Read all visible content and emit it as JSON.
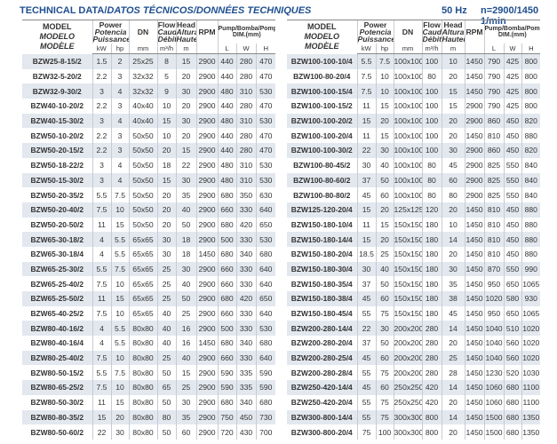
{
  "title_main": "TECHNICAL DATA/",
  "title_italic": "DATOS TÉCNICOS/DONNÉES TECHNIQUES",
  "frequency": "50 Hz",
  "speed": "n=2900/1450 1/min",
  "header": {
    "model": [
      "MODEL",
      "MODELO",
      "MODÈLE"
    ],
    "power": [
      "Power",
      "Potencia",
      "Puissance"
    ],
    "dn": "DN",
    "flow": [
      "Flow",
      "Caudal",
      "Débit"
    ],
    "head": [
      "Head",
      "Altura",
      "Hauteur"
    ],
    "rpm": "RPM",
    "dim": [
      "Pump/Bomba/Pompe",
      "DIM.(mm)"
    ],
    "units": [
      "kW",
      "hp",
      "mm",
      "m³/h",
      "m",
      "",
      "L",
      "W",
      "H"
    ]
  },
  "colors": {
    "title": "#1f4f8f",
    "row_shade": "#e3e8ef"
  },
  "left_table": [
    [
      "BZW25-8-15/2",
      "1.5",
      "2",
      "25x25",
      "8",
      "15",
      "2900",
      "440",
      "280",
      "470"
    ],
    [
      "BZW32-5-20/2",
      "2.2",
      "3",
      "32x32",
      "5",
      "20",
      "2900",
      "440",
      "280",
      "470"
    ],
    [
      "BZW32-9-30/2",
      "3",
      "4",
      "32x32",
      "9",
      "30",
      "2900",
      "480",
      "310",
      "530"
    ],
    [
      "BZW40-10-20/2",
      "2.2",
      "3",
      "40x40",
      "10",
      "20",
      "2900",
      "440",
      "280",
      "470"
    ],
    [
      "BZW40-15-30/2",
      "3",
      "4",
      "40x40",
      "15",
      "30",
      "2900",
      "480",
      "310",
      "530"
    ],
    [
      "BZW50-10-20/2",
      "2.2",
      "3",
      "50x50",
      "10",
      "20",
      "2900",
      "440",
      "280",
      "470"
    ],
    [
      "BZW50-20-15/2",
      "2.2",
      "3",
      "50x50",
      "20",
      "15",
      "2900",
      "440",
      "280",
      "470"
    ],
    [
      "BZW50-18-22/2",
      "3",
      "4",
      "50x50",
      "18",
      "22",
      "2900",
      "480",
      "310",
      "530"
    ],
    [
      "BZW50-15-30/2",
      "3",
      "4",
      "50x50",
      "15",
      "30",
      "2900",
      "480",
      "310",
      "530"
    ],
    [
      "BZW50-20-35/2",
      "5.5",
      "7.5",
      "50x50",
      "20",
      "35",
      "2900",
      "680",
      "350",
      "630"
    ],
    [
      "BZW50-20-40/2",
      "7.5",
      "10",
      "50x50",
      "20",
      "40",
      "2900",
      "660",
      "330",
      "640"
    ],
    [
      "BZW50-20-50/2",
      "11",
      "15",
      "50x50",
      "20",
      "50",
      "2900",
      "680",
      "420",
      "650"
    ],
    [
      "BZW65-30-18/2",
      "4",
      "5.5",
      "65x65",
      "30",
      "18",
      "2900",
      "500",
      "330",
      "530"
    ],
    [
      "BZW65-30-18/4",
      "4",
      "5.5",
      "65x65",
      "30",
      "18",
      "1450",
      "680",
      "340",
      "680"
    ],
    [
      "BZW65-25-30/2",
      "5.5",
      "7.5",
      "65x65",
      "25",
      "30",
      "2900",
      "660",
      "330",
      "640"
    ],
    [
      "BZW65-25-40/2",
      "7.5",
      "10",
      "65x65",
      "25",
      "40",
      "2900",
      "660",
      "330",
      "640"
    ],
    [
      "BZW65-25-50/2",
      "11",
      "15",
      "65x65",
      "25",
      "50",
      "2900",
      "680",
      "420",
      "650"
    ],
    [
      "BZW65-40-25/2",
      "7.5",
      "10",
      "65x65",
      "40",
      "25",
      "2900",
      "660",
      "330",
      "640"
    ],
    [
      "BZW80-40-16/2",
      "4",
      "5.5",
      "80x80",
      "40",
      "16",
      "2900",
      "500",
      "330",
      "530"
    ],
    [
      "BZW80-40-16/4",
      "4",
      "5.5",
      "80x80",
      "40",
      "16",
      "1450",
      "680",
      "340",
      "680"
    ],
    [
      "BZW80-25-40/2",
      "7.5",
      "10",
      "80x80",
      "25",
      "40",
      "2900",
      "660",
      "330",
      "640"
    ],
    [
      "BZW80-50-15/2",
      "5.5",
      "7.5",
      "80x80",
      "50",
      "15",
      "2900",
      "590",
      "335",
      "590"
    ],
    [
      "BZW80-65-25/2",
      "7.5",
      "10",
      "80x80",
      "65",
      "25",
      "2900",
      "590",
      "335",
      "590"
    ],
    [
      "BZW80-50-30/2",
      "11",
      "15",
      "80x80",
      "50",
      "30",
      "2900",
      "680",
      "340",
      "680"
    ],
    [
      "BZW80-80-35/2",
      "15",
      "20",
      "80x80",
      "80",
      "35",
      "2900",
      "750",
      "450",
      "730"
    ],
    [
      "BZW80-50-60/2",
      "22",
      "30",
      "80x80",
      "50",
      "60",
      "2900",
      "720",
      "430",
      "700"
    ]
  ],
  "right_table": [
    [
      "BZW100-100-10/4",
      "5.5",
      "7.5",
      "100x100",
      "100",
      "10",
      "1450",
      "790",
      "425",
      "800"
    ],
    [
      "BZW100-80-20/4",
      "7.5",
      "10",
      "100x100",
      "80",
      "20",
      "1450",
      "790",
      "425",
      "800"
    ],
    [
      "BZW100-100-15/4",
      "7.5",
      "10",
      "100x100",
      "100",
      "15",
      "1450",
      "790",
      "425",
      "800"
    ],
    [
      "BZW100-100-15/2",
      "11",
      "15",
      "100x100",
      "100",
      "15",
      "2900",
      "790",
      "425",
      "800"
    ],
    [
      "BZW100-100-20/2",
      "15",
      "20",
      "100x100",
      "100",
      "20",
      "2900",
      "860",
      "450",
      "820"
    ],
    [
      "BZW100-100-20/4",
      "11",
      "15",
      "100x100",
      "100",
      "20",
      "1450",
      "810",
      "450",
      "880"
    ],
    [
      "BZW100-100-30/2",
      "22",
      "30",
      "100x100",
      "100",
      "30",
      "2900",
      "860",
      "450",
      "820"
    ],
    [
      "BZW100-80-45/2",
      "30",
      "40",
      "100x100",
      "80",
      "45",
      "2900",
      "825",
      "550",
      "840"
    ],
    [
      "BZW100-80-60/2",
      "37",
      "50",
      "100x100",
      "80",
      "60",
      "2900",
      "825",
      "550",
      "840"
    ],
    [
      "BZW100-80-80/2",
      "45",
      "60",
      "100x100",
      "80",
      "80",
      "2900",
      "825",
      "550",
      "840"
    ],
    [
      "BZW125-120-20/4",
      "15",
      "20",
      "125x125",
      "120",
      "20",
      "1450",
      "810",
      "450",
      "880"
    ],
    [
      "BZW150-180-10/4",
      "11",
      "15",
      "150x150",
      "180",
      "10",
      "1450",
      "810",
      "450",
      "880"
    ],
    [
      "BZW150-180-14/4",
      "15",
      "20",
      "150x150",
      "180",
      "14",
      "1450",
      "810",
      "450",
      "880"
    ],
    [
      "BZW150-180-20/4",
      "18.5",
      "25",
      "150x150",
      "180",
      "20",
      "1450",
      "810",
      "450",
      "880"
    ],
    [
      "BZW150-180-30/4",
      "30",
      "40",
      "150x150",
      "180",
      "30",
      "1450",
      "870",
      "550",
      "990"
    ],
    [
      "BZW150-180-35/4",
      "37",
      "50",
      "150x150",
      "180",
      "35",
      "1450",
      "950",
      "650",
      "1065"
    ],
    [
      "BZW150-180-38/4",
      "45",
      "60",
      "150x150",
      "180",
      "38",
      "1450",
      "1020",
      "580",
      "930"
    ],
    [
      "BZW150-180-45/4",
      "55",
      "75",
      "150x150",
      "180",
      "45",
      "1450",
      "950",
      "650",
      "1065"
    ],
    [
      "BZW200-280-14/4",
      "22",
      "30",
      "200x200",
      "280",
      "14",
      "1450",
      "1040",
      "510",
      "1020"
    ],
    [
      "BZW200-280-20/4",
      "37",
      "50",
      "200x200",
      "280",
      "20",
      "1450",
      "1040",
      "560",
      "1020"
    ],
    [
      "BZW200-280-25/4",
      "45",
      "60",
      "200x200",
      "280",
      "25",
      "1450",
      "1040",
      "560",
      "1020"
    ],
    [
      "BZW200-280-28/4",
      "55",
      "75",
      "200x200",
      "280",
      "28",
      "1450",
      "1230",
      "520",
      "1030"
    ],
    [
      "BZW250-420-14/4",
      "45",
      "60",
      "250x250",
      "420",
      "14",
      "1450",
      "1060",
      "680",
      "1100"
    ],
    [
      "BZW250-420-20/4",
      "55",
      "75",
      "250x250",
      "420",
      "20",
      "1450",
      "1060",
      "680",
      "1100"
    ],
    [
      "BZW300-800-14/4",
      "55",
      "75",
      "300x300",
      "800",
      "14",
      "1450",
      "1500",
      "680",
      "1350"
    ],
    [
      "BZW300-800-20/4",
      "75",
      "100",
      "300x300",
      "800",
      "20",
      "1450",
      "1500",
      "680",
      "1350"
    ]
  ]
}
